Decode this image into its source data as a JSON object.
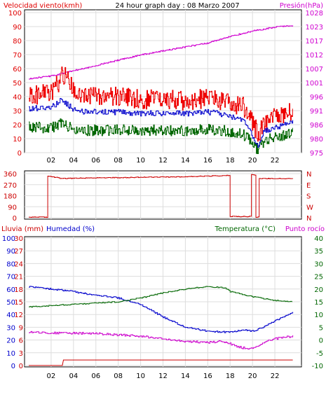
{
  "colors": {
    "wind_axis": "#e00000",
    "pressure": "#d000d0",
    "wind_max": "#ee0000",
    "wind_avg": "#0000cc",
    "wind_min": "#006600",
    "direction": "#cc0000",
    "rain": "#cc0000",
    "humidity": "#0000cc",
    "temperature": "#006600",
    "dewpoint": "#cc00cc",
    "grid": "#dddddd",
    "frame": "#000000"
  },
  "header": {
    "left": "Velocidad viento(kmh)",
    "center": "24 hour graph day : 08 Marzo 2007",
    "right": "Presión(hPa)"
  },
  "panel3_header": {
    "rain": "Lluvia (mm)",
    "humidity": "Humedad (%)",
    "temperature": "Temperatura (°C)",
    "dewpoint": "Punto rocío"
  },
  "x_ticks": [
    "02",
    "04",
    "06",
    "08",
    "10",
    "12",
    "14",
    "16",
    "18",
    "20",
    "22"
  ],
  "chart_data": [
    {
      "type": "line",
      "title": "24 hour graph day : 08 Marzo 2007",
      "xlabel": "",
      "ylabel": "Velocidad viento(kmh)",
      "y2label": "Presión(hPa)",
      "xlim": [
        0,
        24
      ],
      "ylim": [
        0,
        100
      ],
      "y2lim": [
        975,
        1028
      ],
      "yticks": [
        "0",
        "10",
        "20",
        "30",
        "40",
        "50",
        "60",
        "70",
        "80",
        "90",
        "100"
      ],
      "y2ticks": [
        "975",
        "980",
        "986",
        "991",
        "996",
        "1001",
        "1007",
        "1012",
        "1017",
        "1023",
        "1028"
      ],
      "grid": true,
      "series": [
        {
          "key": "wind_max",
          "axis": "left",
          "x": [
            0.0,
            1.0,
            2.0,
            2.5,
            3.0,
            3.5,
            4.0,
            5.0,
            6.0,
            7.0,
            8.0,
            9.0,
            10.0,
            11.0,
            12.0,
            13.0,
            14.0,
            15.0,
            16.0,
            17.0,
            18.0,
            19.0,
            19.5,
            20.0,
            20.5,
            21.0,
            22.0,
            23.0,
            23.6
          ],
          "values": [
            40,
            42,
            44,
            48,
            56,
            52,
            45,
            41,
            40,
            41,
            40,
            39,
            38,
            38,
            37,
            38,
            37,
            38,
            39,
            37,
            35,
            34,
            30,
            22,
            12,
            20,
            25,
            28,
            30
          ]
        },
        {
          "key": "wind_avg",
          "axis": "left",
          "x": [
            0.0,
            1.0,
            2.0,
            2.5,
            3.0,
            3.5,
            4.0,
            5.0,
            6.0,
            7.0,
            8.0,
            9.0,
            10.0,
            11.0,
            12.0,
            13.0,
            14.0,
            15.0,
            16.0,
            17.0,
            18.0,
            19.0,
            19.5,
            20.0,
            20.5,
            21.0,
            22.0,
            23.0,
            23.6
          ],
          "values": [
            31,
            32,
            33,
            35,
            38,
            34,
            31,
            29,
            29,
            29,
            29,
            28,
            28,
            28,
            28,
            28,
            28,
            28,
            29,
            28,
            26,
            24,
            20,
            12,
            5,
            15,
            18,
            20,
            22
          ]
        },
        {
          "key": "wind_min",
          "axis": "left",
          "x": [
            0.0,
            1.0,
            2.0,
            2.5,
            3.0,
            3.5,
            4.0,
            5.0,
            6.0,
            7.0,
            8.0,
            9.0,
            10.0,
            11.0,
            12.0,
            13.0,
            14.0,
            15.0,
            16.0,
            17.0,
            18.0,
            19.0,
            19.5,
            20.0,
            20.5,
            21.0,
            22.0,
            23.0,
            23.6
          ],
          "values": [
            18,
            18,
            18,
            19,
            21,
            19,
            17,
            16,
            16,
            16,
            16,
            16,
            16,
            16,
            16,
            16,
            16,
            16,
            17,
            16,
            15,
            14,
            11,
            6,
            2,
            8,
            11,
            12,
            14
          ]
        },
        {
          "key": "pressure",
          "axis": "right",
          "x": [
            0.0,
            2.0,
            4.0,
            6.0,
            8.0,
            10.0,
            12.0,
            14.0,
            16.0,
            18.0,
            20.0,
            22.0,
            23.0,
            23.6
          ],
          "values": [
            1003,
            1004,
            1006,
            1008,
            1010,
            1012,
            1013.5,
            1015,
            1016.5,
            1019,
            1021,
            1022.5,
            1023,
            1023
          ]
        }
      ]
    },
    {
      "type": "line",
      "title": "",
      "xlabel": "",
      "ylabel": "",
      "xlim": [
        0,
        24
      ],
      "ylim": [
        0,
        360
      ],
      "yticks": [
        "0",
        "90",
        "180",
        "270",
        "360"
      ],
      "y2ticks": [
        "N",
        "E",
        "S",
        "W",
        "N"
      ],
      "grid": true,
      "series": [
        {
          "key": "direction",
          "axis": "left",
          "x": [
            0.0,
            1.6,
            1.7,
            3.0,
            6.0,
            10.0,
            14.0,
            17.9,
            18.0,
            19.8,
            19.9,
            20.2,
            20.3,
            20.5,
            20.6,
            23.6
          ],
          "values": [
            5,
            5,
            340,
            320,
            325,
            330,
            335,
            345,
            10,
            10,
            350,
            350,
            5,
            5,
            320,
            320
          ]
        }
      ]
    },
    {
      "type": "line",
      "title": "",
      "xlabel": "",
      "ylabel": "Lluvia (mm)",
      "y2label": "Temperatura (°C)",
      "xlim": [
        0,
        24
      ],
      "ylim": [
        0,
        100
      ],
      "rain_ticks": [
        "0",
        "3",
        "6",
        "9",
        "12",
        "15",
        "18",
        "21",
        "24",
        "27",
        "30"
      ],
      "humidity_ticks": [
        "0",
        "10",
        "20",
        "30",
        "40",
        "50",
        "60",
        "70",
        "80",
        "90",
        "100"
      ],
      "temp_ticks": [
        "-10",
        "-5",
        "0",
        "5",
        "10",
        "15",
        "20",
        "25",
        "30",
        "35",
        "40"
      ],
      "y2lim": [
        -10,
        40
      ],
      "grid": true,
      "series": [
        {
          "key": "rain",
          "axis": "left",
          "x": [
            0.0,
            3.0,
            3.1,
            23.6
          ],
          "values": [
            0,
            0,
            1.3,
            1.3
          ]
        },
        {
          "key": "humidity",
          "axis": "left",
          "x": [
            0.0,
            2.0,
            4.0,
            6.0,
            8.0,
            10.0,
            12.0,
            14.0,
            16.0,
            18.0,
            19.0,
            20.0,
            21.0,
            22.0,
            23.6
          ],
          "values": [
            62,
            60,
            58,
            55,
            53,
            48,
            38,
            30,
            27,
            26,
            28,
            27,
            30,
            35,
            42
          ]
        },
        {
          "key": "temperature",
          "axis": "right",
          "x": [
            0.0,
            2.0,
            4.0,
            6.0,
            8.0,
            10.0,
            12.0,
            14.0,
            16.0,
            17.5,
            18.0,
            20.0,
            22.0,
            23.6
          ],
          "values": [
            13,
            13.5,
            14,
            14.5,
            15,
            16.5,
            18.5,
            20,
            21,
            20.5,
            19,
            17,
            15.5,
            15
          ]
        },
        {
          "key": "dewpoint",
          "axis": "right",
          "x": [
            0.0,
            2.0,
            4.0,
            6.0,
            8.0,
            10.0,
            12.0,
            14.0,
            16.0,
            17.0,
            18.0,
            19.0,
            20.0,
            21.0,
            22.0,
            23.6
          ],
          "values": [
            3,
            2.8,
            2.7,
            2.5,
            2,
            1.5,
            0.5,
            -0.5,
            -1,
            -0.5,
            -1.5,
            -3,
            -3.5,
            -1,
            0.5,
            1.5
          ]
        }
      ]
    }
  ]
}
